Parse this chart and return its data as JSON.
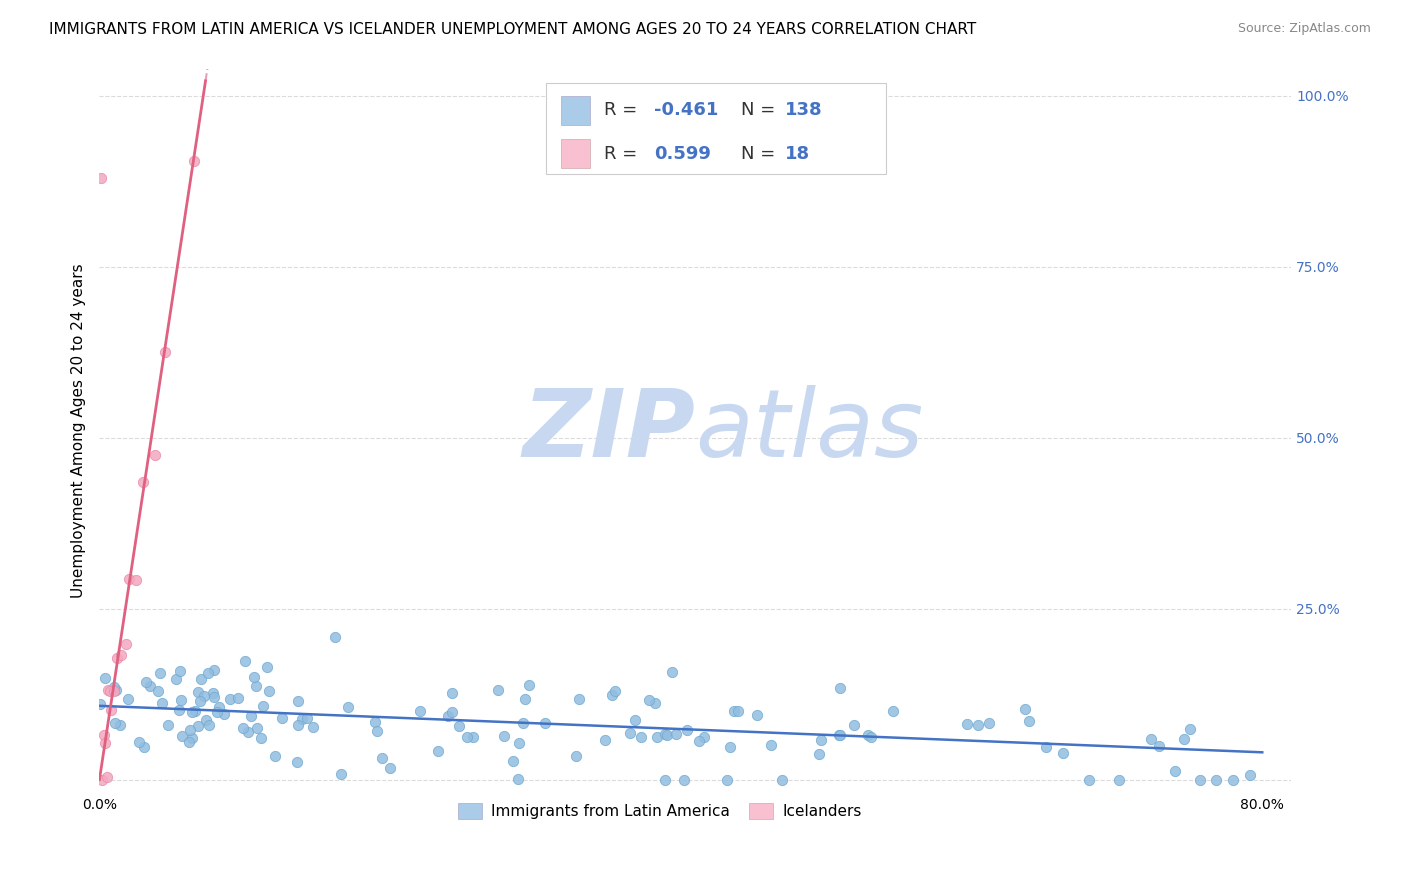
{
  "title": "IMMIGRANTS FROM LATIN AMERICA VS ICELANDER UNEMPLOYMENT AMONG AGES 20 TO 24 YEARS CORRELATION CHART",
  "source": "Source: ZipAtlas.com",
  "ylabel": "Unemployment Among Ages 20 to 24 years",
  "xlim": [
    0.0,
    0.82
  ],
  "ylim": [
    -0.02,
    1.04
  ],
  "yticks": [
    0.0,
    0.25,
    0.5,
    0.75,
    1.0
  ],
  "right_yticklabels": [
    "",
    "25.0%",
    "50.0%",
    "75.0%",
    "100.0%"
  ],
  "xtick_positions": [
    0.0,
    0.1,
    0.2,
    0.3,
    0.4,
    0.5,
    0.6,
    0.7,
    0.8
  ],
  "xticklabels": [
    "0.0%",
    "",
    "",
    "",
    "",
    "",
    "",
    "",
    "80.0%"
  ],
  "blue_R": -0.461,
  "blue_N": 138,
  "pink_R": 0.599,
  "pink_N": 18,
  "blue_scatter_color": "#92bde0",
  "blue_scatter_edge": "#6fa8d0",
  "pink_scatter_color": "#f4a8c0",
  "pink_scatter_edge": "#e888a8",
  "blue_legend_color": "#aacce8",
  "pink_legend_color": "#f8c0d0",
  "blue_line_color": "#4472c4",
  "pink_line_color": "#e06080",
  "watermark_zip_color": "#c8d8f0",
  "watermark_atlas_color": "#c8d8f0",
  "blue_label": "Immigrants from Latin America",
  "pink_label": "Icelanders",
  "background_color": "#ffffff",
  "title_fontsize": 11,
  "source_fontsize": 9,
  "ylabel_fontsize": 11,
  "tick_fontsize": 10,
  "right_tick_color": "#4472c4",
  "legend_text_color": "#333333",
  "legend_value_color": "#4472c4",
  "blue_intercept": 0.108,
  "blue_slope": -0.085,
  "pink_intercept": 0.0,
  "pink_slope": 14.0,
  "pink_line_x_solid_end": 0.073,
  "pink_line_x_dash_end": 0.085
}
